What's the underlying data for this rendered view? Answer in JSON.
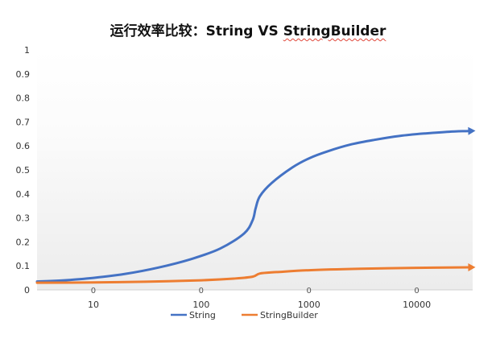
{
  "chart_data": {
    "type": "line",
    "title_main": "运行效率比较：String VS ",
    "title_spell": "StringBuilder",
    "x_scale": "log",
    "x_ticks": [
      "10",
      "100",
      "1000",
      "10000"
    ],
    "x_tick_values": [
      10,
      100,
      1000,
      10000
    ],
    "xlim": [
      3,
      33000
    ],
    "ylim": [
      0,
      1
    ],
    "y_ticks": [
      "0",
      "0.1",
      "0.2",
      "0.3",
      "0.4",
      "0.5",
      "0.6",
      "0.7",
      "0.8",
      "0.9",
      "1"
    ],
    "y_tick_values": [
      0,
      0.1,
      0.2,
      0.3,
      0.4,
      0.5,
      0.6,
      0.7,
      0.8,
      0.9,
      1
    ],
    "zero_labels": [
      "0",
      "0",
      "0",
      "0"
    ],
    "legend_position": "bottom",
    "series": [
      {
        "name": "String",
        "color": "#4472c4",
        "x": [
          3,
          5,
          10,
          20,
          40,
          80,
          150,
          250,
          300,
          320,
          350,
          450,
          700,
          1000,
          1500,
          2500,
          4000,
          7000,
          12000,
          20000,
          30000
        ],
        "y": [
          0.035,
          0.039,
          0.05,
          0.067,
          0.093,
          0.128,
          0.172,
          0.235,
          0.29,
          0.34,
          0.39,
          0.445,
          0.51,
          0.548,
          0.578,
          0.607,
          0.625,
          0.642,
          0.652,
          0.659,
          0.662
        ]
      },
      {
        "name": "StringBuilder",
        "color": "#ed7d31",
        "x": [
          3,
          10,
          30,
          100,
          200,
          300,
          350,
          500,
          1000,
          3000,
          10000,
          30000
        ],
        "y": [
          0.03,
          0.031,
          0.034,
          0.04,
          0.047,
          0.055,
          0.068,
          0.074,
          0.082,
          0.088,
          0.092,
          0.094
        ]
      }
    ]
  }
}
